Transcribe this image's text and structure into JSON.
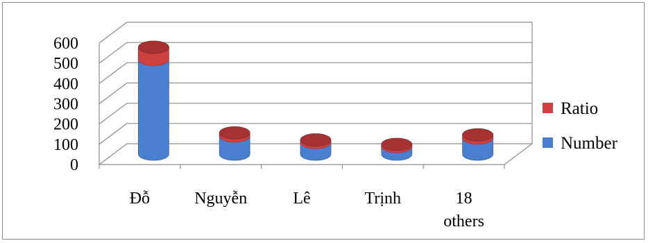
{
  "chart_data": {
    "type": "bar",
    "style": "3d-stacked-cylinder",
    "categories": [
      "Đỗ",
      "Nguyễn",
      "Lê",
      "Trịnh",
      "18\nothers"
    ],
    "series": [
      {
        "name": "Number",
        "values": [
          468,
          90,
          58,
          38,
          80
        ],
        "color": "#4a7fd0"
      },
      {
        "name": "Ratio",
        "values": [
          60,
          15,
          12,
          10,
          15
        ],
        "color": "#cf4040"
      }
    ],
    "yticks": [
      0,
      100,
      200,
      300,
      400,
      500,
      600
    ],
    "ylim": [
      0,
      600
    ],
    "grid": true,
    "legend": "right",
    "title": "",
    "xlabel": "",
    "ylabel": ""
  }
}
